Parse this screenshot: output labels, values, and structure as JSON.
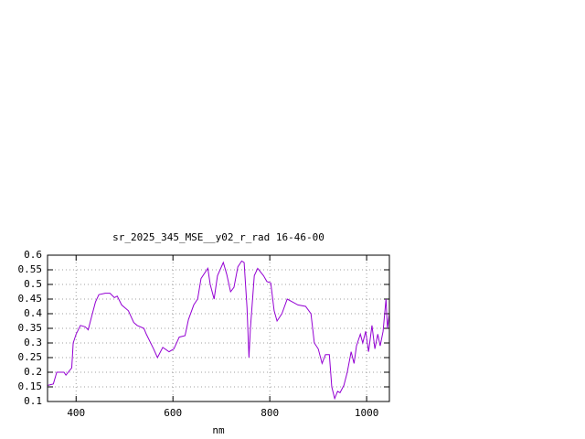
{
  "chart_data": {
    "type": "line",
    "title": "sr_2025_345_MSE__y02_r_rad 16-46-00",
    "x_label": "nm",
    "xlim": [
      341,
      1047
    ],
    "xticks": [
      400,
      600,
      800,
      1000
    ],
    "ylim": [
      0.1,
      0.6
    ],
    "yticks": [
      0.1,
      0.15,
      0.2,
      0.25,
      0.3,
      0.35,
      0.4,
      0.45,
      0.5,
      0.55,
      0.6
    ],
    "grid": true,
    "x": [
      341.5,
      353,
      360,
      375,
      379,
      391,
      394,
      400,
      409,
      419,
      425,
      432,
      440,
      447,
      460,
      470,
      479,
      485,
      494,
      508,
      519,
      526,
      540,
      545,
      560,
      568,
      579,
      592,
      602,
      613,
      625,
      632,
      643,
      651,
      658,
      672,
      677,
      685,
      692,
      704,
      711,
      719,
      726,
      734,
      742,
      747,
      753,
      757,
      760,
      768,
      775,
      787,
      794,
      802,
      809,
      815,
      825,
      836,
      847,
      858,
      874,
      885,
      892,
      900,
      908,
      915,
      923,
      928,
      934,
      940,
      945,
      953,
      960,
      968,
      974,
      979,
      987,
      992,
      998,
      1004,
      1011,
      1017,
      1023,
      1028,
      1034,
      1040,
      1043,
      1047
    ],
    "series": [
      {
        "color": "#9400d3",
        "values": [
          0.155,
          0.16,
          0.2,
          0.2,
          0.19,
          0.215,
          0.3,
          0.33,
          0.36,
          0.355,
          0.345,
          0.39,
          0.44,
          0.465,
          0.47,
          0.47,
          0.455,
          0.46,
          0.43,
          0.41,
          0.37,
          0.36,
          0.35,
          0.33,
          0.28,
          0.25,
          0.285,
          0.27,
          0.28,
          0.32,
          0.325,
          0.38,
          0.43,
          0.45,
          0.52,
          0.555,
          0.5,
          0.45,
          0.53,
          0.575,
          0.535,
          0.475,
          0.49,
          0.56,
          0.58,
          0.575,
          0.42,
          0.25,
          0.35,
          0.53,
          0.555,
          0.53,
          0.51,
          0.505,
          0.41,
          0.375,
          0.4,
          0.45,
          0.44,
          0.43,
          0.425,
          0.4,
          0.3,
          0.28,
          0.23,
          0.26,
          0.26,
          0.15,
          0.11,
          0.135,
          0.13,
          0.155,
          0.2,
          0.27,
          0.23,
          0.29,
          0.33,
          0.3,
          0.34,
          0.27,
          0.36,
          0.28,
          0.33,
          0.29,
          0.34,
          0.45,
          0.35,
          0.4
        ]
      }
    ]
  }
}
